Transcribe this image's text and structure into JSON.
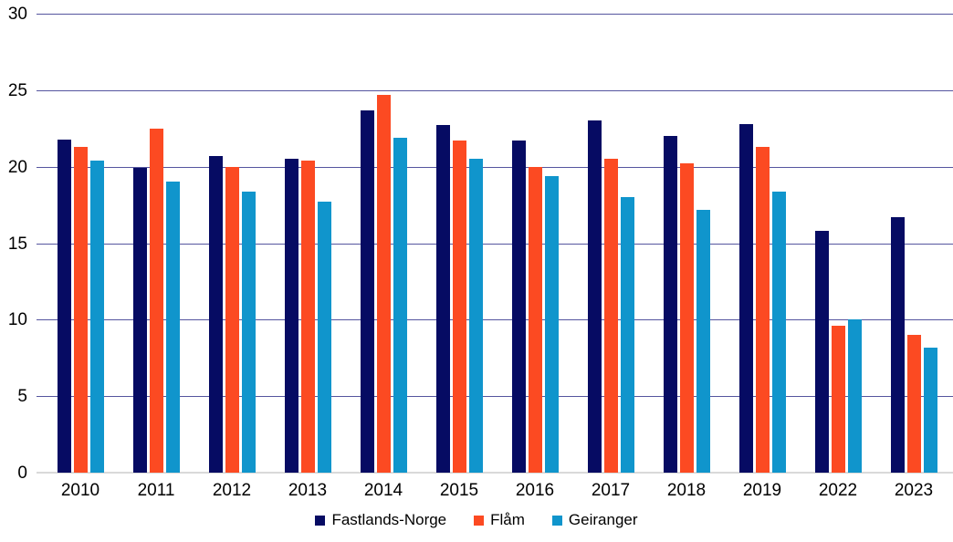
{
  "chart_data": {
    "type": "bar",
    "title": "",
    "xlabel": "",
    "ylabel": "",
    "categories": [
      "2010",
      "2011",
      "2012",
      "2013",
      "2014",
      "2015",
      "2016",
      "2017",
      "2018",
      "2019",
      "2022",
      "2023"
    ],
    "series": [
      {
        "name": "Fastlands-Norge",
        "color": "#060b63",
        "values": [
          21.8,
          19.9,
          20.7,
          20.5,
          23.7,
          22.7,
          21.7,
          23.0,
          22.0,
          22.8,
          15.8,
          16.7
        ]
      },
      {
        "name": "Flåm",
        "color": "#fc4a22",
        "values": [
          21.3,
          22.5,
          20.0,
          20.4,
          24.7,
          21.7,
          20.0,
          20.5,
          20.2,
          21.3,
          9.6,
          9.0
        ]
      },
      {
        "name": "Geiranger",
        "color": "#1095cc",
        "values": [
          20.4,
          19.0,
          18.4,
          17.7,
          21.9,
          20.5,
          19.4,
          18.0,
          17.2,
          18.4,
          10.0,
          8.2
        ]
      }
    ],
    "ylim": [
      0,
      30
    ],
    "yticks": [
      0,
      5,
      10,
      15,
      20,
      25,
      30
    ],
    "grid": true,
    "gridline_color": "#55559f",
    "baseline_color": "#d9d9d9",
    "legend_position": "bottom"
  }
}
